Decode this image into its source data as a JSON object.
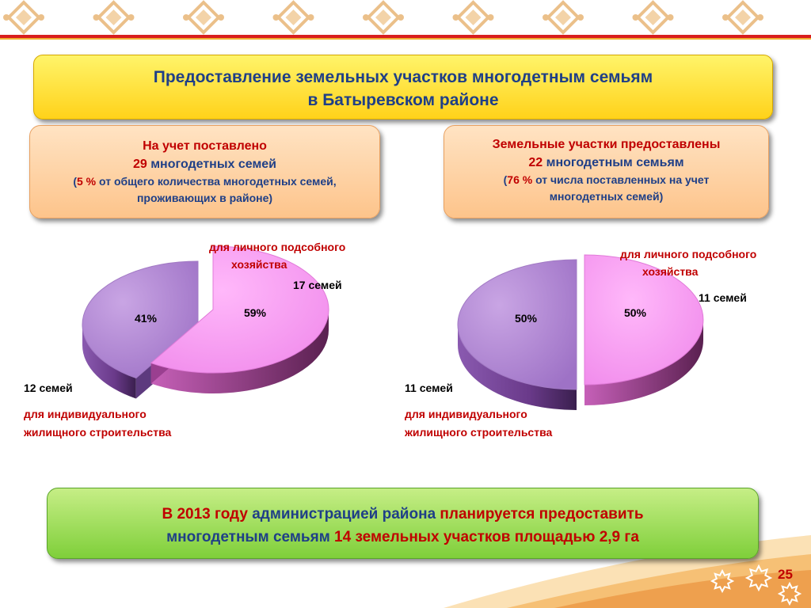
{
  "title": "Предоставление земельных участков многодетным семьям\nв Батыревском районе",
  "left_box": {
    "line1": "На учет поставлено",
    "num": "29",
    "line2_rest": " многодетных семей",
    "l3_a": "(",
    "l3_pct": "5 %",
    "l3_b": " от общего количества многодетных семей,",
    "line4": "проживающих в районе)"
  },
  "right_box": {
    "line1": "Земельные участки предоставлены",
    "num": "22",
    "line2_rest": " многодетным семьям",
    "l3_a": "(",
    "l3_pct": "76 %",
    "l3_b": " от числа поставленных на учет",
    "line4": "многодетных семей)"
  },
  "chart_data": [
    {
      "type": "pie",
      "slices": [
        {
          "label": "для личного подсобного хозяйства",
          "value": 59,
          "count_label": "17 семей",
          "pct_label": "59%",
          "color": "#fb9cf5"
        },
        {
          "label": "для индивидуального жилищного строительства",
          "value": 41,
          "count_label": "12  семей",
          "pct_label": "41%",
          "color": "#b88ed8"
        }
      ]
    },
    {
      "type": "pie",
      "slices": [
        {
          "label": "для личного подсобного хозяйства",
          "value": 50,
          "count_label": "11 семей",
          "pct_label": "50%",
          "color": "#fb9cf5"
        },
        {
          "label": "для индивидуального жилищного строительства",
          "value": 50,
          "count_label": "11  семей",
          "pct_label": "50%",
          "color": "#b88ed8"
        }
      ]
    }
  ],
  "labels": {
    "left_top_1": "для личного подсобного",
    "left_top_2": "хозяйства",
    "left_bottom_1": "для индивидуального",
    "left_bottom_2": "жилищного  строительства",
    "right_top_1": "для личного подсобного",
    "right_top_2": "хозяйства",
    "right_bottom_1": "для индивидуального",
    "right_bottom_2": "жилищного  строительства"
  },
  "bottom": {
    "a": "В 2013 году ",
    "b": "администрацией района ",
    "c": "планируется предоставить",
    "d": "многодетным семьям ",
    "e": "14 земельных участков площадью 2,9 га"
  },
  "page_number": "25",
  "colors": {
    "red": "#c00000",
    "navy": "#1f3f87",
    "pink": "#fb9cf5",
    "purple": "#b88ed8"
  }
}
